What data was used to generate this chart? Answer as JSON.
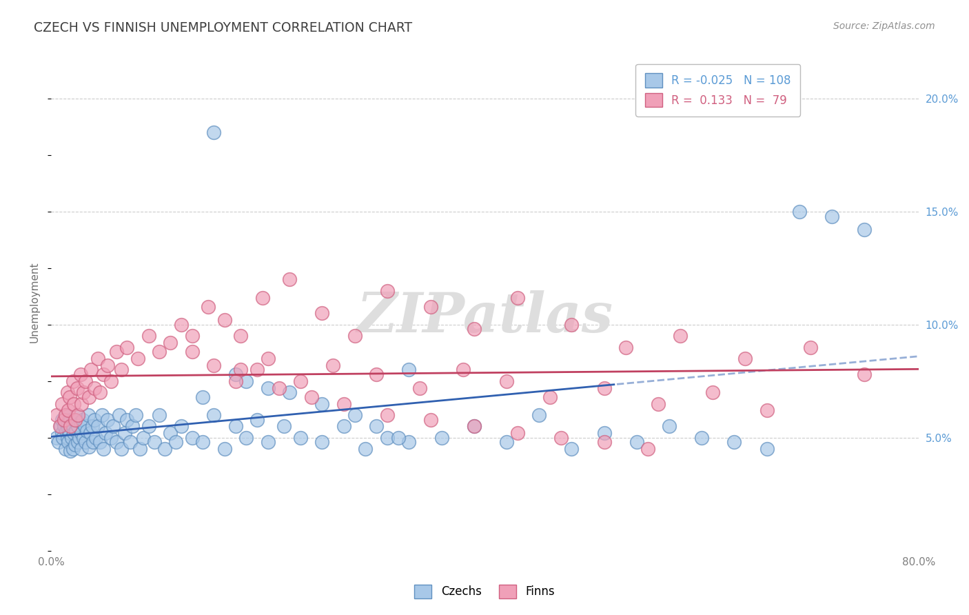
{
  "title": "CZECH VS FINNISH UNEMPLOYMENT CORRELATION CHART",
  "source": "Source: ZipAtlas.com",
  "ylabel": "Unemployment",
  "xlim": [
    0.0,
    0.8
  ],
  "ylim": [
    0.0,
    0.22
  ],
  "czech_color": "#A8C8E8",
  "finn_color": "#F0A0B8",
  "czech_edge": "#6090C0",
  "finn_edge": "#D06080",
  "trend_czech_color": "#3060B0",
  "trend_finn_color": "#C04060",
  "R_czech": -0.025,
  "N_czech": 108,
  "R_finn": 0.133,
  "N_finn": 79,
  "background_color": "#FFFFFF",
  "grid_color": "#CCCCCC",
  "title_color": "#404040",
  "ytick_color": "#5B9BD5",
  "czech_points_x": [
    0.005,
    0.007,
    0.009,
    0.01,
    0.01,
    0.011,
    0.012,
    0.013,
    0.013,
    0.014,
    0.015,
    0.015,
    0.016,
    0.016,
    0.017,
    0.018,
    0.018,
    0.019,
    0.02,
    0.02,
    0.021,
    0.021,
    0.022,
    0.023,
    0.024,
    0.025,
    0.025,
    0.026,
    0.027,
    0.028,
    0.028,
    0.029,
    0.03,
    0.031,
    0.032,
    0.033,
    0.034,
    0.035,
    0.036,
    0.038,
    0.039,
    0.04,
    0.041,
    0.043,
    0.045,
    0.047,
    0.048,
    0.05,
    0.052,
    0.055,
    0.057,
    0.06,
    0.063,
    0.065,
    0.068,
    0.07,
    0.073,
    0.075,
    0.078,
    0.082,
    0.085,
    0.09,
    0.095,
    0.1,
    0.105,
    0.11,
    0.115,
    0.12,
    0.13,
    0.14,
    0.15,
    0.16,
    0.17,
    0.18,
    0.19,
    0.2,
    0.215,
    0.23,
    0.25,
    0.27,
    0.29,
    0.31,
    0.33,
    0.36,
    0.39,
    0.42,
    0.45,
    0.48,
    0.51,
    0.54,
    0.57,
    0.6,
    0.63,
    0.66,
    0.69,
    0.72,
    0.75,
    0.33,
    0.15,
    0.2,
    0.17,
    0.14,
    0.18,
    0.22,
    0.25,
    0.28,
    0.3,
    0.32
  ],
  "czech_points_y": [
    0.05,
    0.048,
    0.055,
    0.052,
    0.058,
    0.05,
    0.055,
    0.06,
    0.045,
    0.053,
    0.05,
    0.056,
    0.048,
    0.054,
    0.052,
    0.058,
    0.044,
    0.05,
    0.055,
    0.045,
    0.052,
    0.058,
    0.047,
    0.053,
    0.06,
    0.048,
    0.055,
    0.05,
    0.057,
    0.045,
    0.052,
    0.058,
    0.05,
    0.055,
    0.048,
    0.053,
    0.06,
    0.046,
    0.052,
    0.055,
    0.048,
    0.058,
    0.05,
    0.055,
    0.048,
    0.06,
    0.045,
    0.052,
    0.058,
    0.05,
    0.055,
    0.048,
    0.06,
    0.045,
    0.052,
    0.058,
    0.048,
    0.055,
    0.06,
    0.045,
    0.05,
    0.055,
    0.048,
    0.06,
    0.045,
    0.052,
    0.048,
    0.055,
    0.05,
    0.048,
    0.06,
    0.045,
    0.055,
    0.05,
    0.058,
    0.048,
    0.055,
    0.05,
    0.048,
    0.055,
    0.045,
    0.05,
    0.048,
    0.05,
    0.055,
    0.048,
    0.06,
    0.045,
    0.052,
    0.048,
    0.055,
    0.05,
    0.048,
    0.045,
    0.15,
    0.148,
    0.142,
    0.08,
    0.185,
    0.072,
    0.078,
    0.068,
    0.075,
    0.07,
    0.065,
    0.06,
    0.055,
    0.05
  ],
  "finn_points_x": [
    0.005,
    0.008,
    0.01,
    0.012,
    0.013,
    0.015,
    0.016,
    0.017,
    0.018,
    0.02,
    0.021,
    0.022,
    0.024,
    0.025,
    0.027,
    0.028,
    0.03,
    0.032,
    0.035,
    0.037,
    0.04,
    0.043,
    0.045,
    0.048,
    0.052,
    0.055,
    0.06,
    0.065,
    0.07,
    0.08,
    0.09,
    0.1,
    0.11,
    0.12,
    0.13,
    0.145,
    0.16,
    0.175,
    0.195,
    0.22,
    0.25,
    0.28,
    0.31,
    0.35,
    0.39,
    0.43,
    0.48,
    0.53,
    0.58,
    0.64,
    0.7,
    0.75,
    0.175,
    0.2,
    0.23,
    0.26,
    0.3,
    0.34,
    0.38,
    0.42,
    0.46,
    0.51,
    0.56,
    0.61,
    0.66,
    0.13,
    0.15,
    0.17,
    0.19,
    0.21,
    0.24,
    0.27,
    0.31,
    0.35,
    0.39,
    0.43,
    0.47,
    0.51,
    0.55
  ],
  "finn_points_y": [
    0.06,
    0.055,
    0.065,
    0.058,
    0.06,
    0.07,
    0.062,
    0.068,
    0.055,
    0.075,
    0.065,
    0.058,
    0.072,
    0.06,
    0.078,
    0.065,
    0.07,
    0.075,
    0.068,
    0.08,
    0.072,
    0.085,
    0.07,
    0.078,
    0.082,
    0.075,
    0.088,
    0.08,
    0.09,
    0.085,
    0.095,
    0.088,
    0.092,
    0.1,
    0.095,
    0.108,
    0.102,
    0.095,
    0.112,
    0.12,
    0.105,
    0.095,
    0.115,
    0.108,
    0.098,
    0.112,
    0.1,
    0.09,
    0.095,
    0.085,
    0.09,
    0.078,
    0.08,
    0.085,
    0.075,
    0.082,
    0.078,
    0.072,
    0.08,
    0.075,
    0.068,
    0.072,
    0.065,
    0.07,
    0.062,
    0.088,
    0.082,
    0.075,
    0.08,
    0.072,
    0.068,
    0.065,
    0.06,
    0.058,
    0.055,
    0.052,
    0.05,
    0.048,
    0.045
  ]
}
